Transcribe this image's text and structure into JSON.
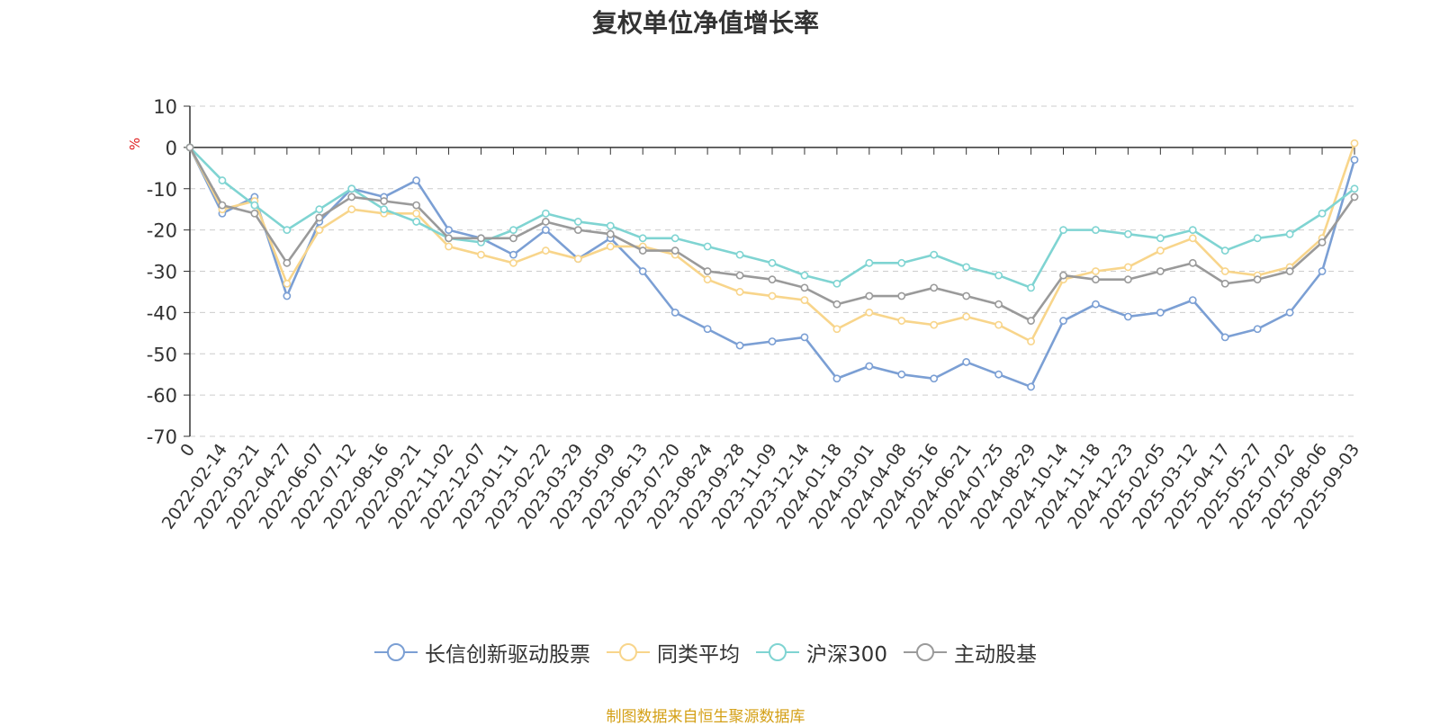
{
  "chart_data": {
    "type": "line",
    "title": "复权单位净值增长率",
    "ylabel": "%",
    "ylim": [
      -70,
      10
    ],
    "yticks": [
      10,
      0,
      -10,
      -20,
      -30,
      -40,
      -50,
      -60,
      -70
    ],
    "x_tick_labels": [
      "0",
      "2022-02-14",
      "2022-03-21",
      "2022-04-27",
      "2022-06-07",
      "2022-07-12",
      "2022-08-16",
      "2022-09-21",
      "2022-11-02",
      "2022-12-07",
      "2023-01-11",
      "2023-02-22",
      "2023-03-29",
      "2023-05-09",
      "2023-06-13",
      "2023-07-20",
      "2023-08-24",
      "2023-09-28",
      "2023-11-09",
      "2023-12-14",
      "2024-01-18",
      "2024-03-01",
      "2024-04-08",
      "2024-05-16",
      "2024-06-21",
      "2024-07-25",
      "2024-08-29",
      "2024-10-14",
      "2024-11-18",
      "2024-12-23",
      "2025-02-05",
      "2025-03-12",
      "2025-04-17",
      "2025-05-27",
      "2025-07-02",
      "2025-08-06",
      "2025-09-03"
    ],
    "grid": true,
    "legend_position": "bottom",
    "series": [
      {
        "name": "长信创新驱动股票",
        "color": "#7b9fd4",
        "x": [
          "0",
          "2022-02-14",
          "2022-03-21",
          "2022-04-27",
          "2022-06-07",
          "2022-07-12",
          "2022-08-16",
          "2022-09-21",
          "2022-11-02",
          "2022-12-07",
          "2023-01-11",
          "2023-02-22",
          "2023-03-29",
          "2023-05-09",
          "2023-06-13",
          "2023-07-20",
          "2023-08-24",
          "2023-09-28",
          "2023-11-09",
          "2023-12-14",
          "2024-01-18",
          "2024-03-01",
          "2024-04-08",
          "2024-05-16",
          "2024-06-21",
          "2024-07-25",
          "2024-08-29",
          "2024-10-14",
          "2024-11-18",
          "2024-12-23",
          "2025-02-05",
          "2025-03-12",
          "2025-04-17",
          "2025-05-27",
          "2025-07-02",
          "2025-08-06",
          "2025-09-03"
        ],
        "values": [
          0,
          -16,
          -12,
          -36,
          -18,
          -10,
          -12,
          -8,
          -20,
          -22,
          -26,
          -20,
          -27,
          -22,
          -30,
          -40,
          -44,
          -48,
          -47,
          -46,
          -56,
          -53,
          -55,
          -56,
          -52,
          -55,
          -58,
          -42,
          -38,
          -41,
          -40,
          -37,
          -46,
          -44,
          -40,
          -30,
          -3
        ]
      },
      {
        "name": "同类平均",
        "color": "#f8d58b",
        "x": [
          "0",
          "2022-02-14",
          "2022-03-21",
          "2022-04-27",
          "2022-06-07",
          "2022-07-12",
          "2022-08-16",
          "2022-09-21",
          "2022-11-02",
          "2022-12-07",
          "2023-01-11",
          "2023-02-22",
          "2023-03-29",
          "2023-05-09",
          "2023-06-13",
          "2023-07-20",
          "2023-08-24",
          "2023-09-28",
          "2023-11-09",
          "2023-12-14",
          "2024-01-18",
          "2024-03-01",
          "2024-04-08",
          "2024-05-16",
          "2024-06-21",
          "2024-07-25",
          "2024-08-29",
          "2024-10-14",
          "2024-11-18",
          "2024-12-23",
          "2025-02-05",
          "2025-03-12",
          "2025-04-17",
          "2025-05-27",
          "2025-07-02",
          "2025-08-06",
          "2025-09-03"
        ],
        "values": [
          0,
          -15,
          -13,
          -33,
          -20,
          -15,
          -16,
          -16,
          -24,
          -26,
          -28,
          -25,
          -27,
          -24,
          -24,
          -26,
          -32,
          -35,
          -36,
          -37,
          -44,
          -40,
          -42,
          -43,
          -41,
          -43,
          -47,
          -32,
          -30,
          -29,
          -25,
          -22,
          -30,
          -31,
          -29,
          -22,
          1
        ]
      },
      {
        "name": "沪深300",
        "color": "#7fd4d2",
        "x": [
          "0",
          "2022-02-14",
          "2022-03-21",
          "2022-04-27",
          "2022-06-07",
          "2022-07-12",
          "2022-08-16",
          "2022-09-21",
          "2022-11-02",
          "2022-12-07",
          "2023-01-11",
          "2023-02-22",
          "2023-03-29",
          "2023-05-09",
          "2023-06-13",
          "2023-07-20",
          "2023-08-24",
          "2023-09-28",
          "2023-11-09",
          "2023-12-14",
          "2024-01-18",
          "2024-03-01",
          "2024-04-08",
          "2024-05-16",
          "2024-06-21",
          "2024-07-25",
          "2024-08-29",
          "2024-10-14",
          "2024-11-18",
          "2024-12-23",
          "2025-02-05",
          "2025-03-12",
          "2025-04-17",
          "2025-05-27",
          "2025-07-02",
          "2025-08-06",
          "2025-09-03"
        ],
        "values": [
          0,
          -8,
          -14,
          -20,
          -15,
          -10,
          -15,
          -18,
          -22,
          -23,
          -20,
          -16,
          -18,
          -19,
          -22,
          -22,
          -24,
          -26,
          -28,
          -31,
          -33,
          -28,
          -28,
          -26,
          -29,
          -31,
          -34,
          -20,
          -20,
          -21,
          -22,
          -20,
          -25,
          -22,
          -21,
          -16,
          -10
        ]
      },
      {
        "name": "主动股基",
        "color": "#9a9a9a",
        "x": [
          "0",
          "2022-02-14",
          "2022-03-21",
          "2022-04-27",
          "2022-06-07",
          "2022-07-12",
          "2022-08-16",
          "2022-09-21",
          "2022-11-02",
          "2022-12-07",
          "2023-01-11",
          "2023-02-22",
          "2023-03-29",
          "2023-05-09",
          "2023-06-13",
          "2023-07-20",
          "2023-08-24",
          "2023-09-28",
          "2023-11-09",
          "2023-12-14",
          "2024-01-18",
          "2024-03-01",
          "2024-04-08",
          "2024-05-16",
          "2024-06-21",
          "2024-07-25",
          "2024-08-29",
          "2024-10-14",
          "2024-11-18",
          "2024-12-23",
          "2025-02-05",
          "2025-03-12",
          "2025-04-17",
          "2025-05-27",
          "2025-07-02",
          "2025-08-06",
          "2025-09-03"
        ],
        "values": [
          0,
          -14,
          -16,
          -28,
          -17,
          -12,
          -13,
          -14,
          -22,
          -22,
          -22,
          -18,
          -20,
          -21,
          -25,
          -25,
          -30,
          -31,
          -32,
          -34,
          -38,
          -36,
          -36,
          -34,
          -36,
          -38,
          -42,
          -31,
          -32,
          -32,
          -30,
          -28,
          -33,
          -32,
          -30,
          -23,
          -12
        ]
      }
    ]
  },
  "source_note": "制图数据来自恒生聚源数据库"
}
